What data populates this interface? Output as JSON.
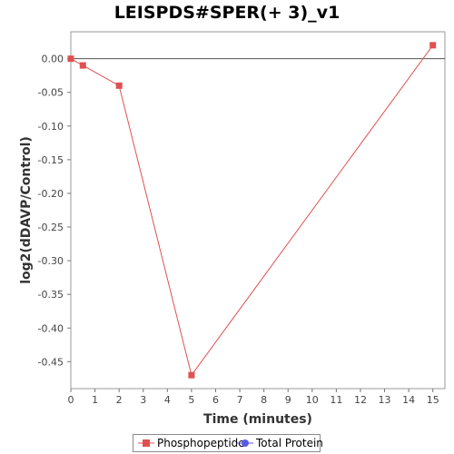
{
  "chart_data": {
    "type": "line",
    "title": "LEISPDS#SPER(+ 3)_v1",
    "xlabel": "Time (minutes)",
    "ylabel": "log2(dDAVP/Control)",
    "xlim": [
      0,
      15.5
    ],
    "ylim": [
      -0.49,
      0.04
    ],
    "x_ticks": [
      0,
      1,
      2,
      3,
      4,
      5,
      6,
      7,
      8,
      9,
      10,
      11,
      12,
      13,
      14,
      15
    ],
    "y_ticks": [
      0.0,
      -0.05,
      -0.1,
      -0.15,
      -0.2,
      -0.25,
      -0.3,
      -0.35,
      -0.4,
      -0.45
    ],
    "y_tick_labels": [
      "0.00",
      "-0.05",
      "-0.10",
      "-0.15",
      "-0.20",
      "-0.25",
      "-0.30",
      "-0.35",
      "-0.40",
      "-0.45"
    ],
    "zero_line": true,
    "grid": false,
    "legend_position": "bottom",
    "series": [
      {
        "name": "Phosphopeptide",
        "color": "#e05050",
        "marker": "square",
        "x": [
          0,
          0.5,
          2,
          5,
          15
        ],
        "y": [
          0.0,
          -0.01,
          -0.04,
          -0.47,
          0.02
        ]
      },
      {
        "name": "Total Protein",
        "color": "#5a5ae6",
        "marker": "circle",
        "x": [],
        "y": []
      }
    ]
  }
}
